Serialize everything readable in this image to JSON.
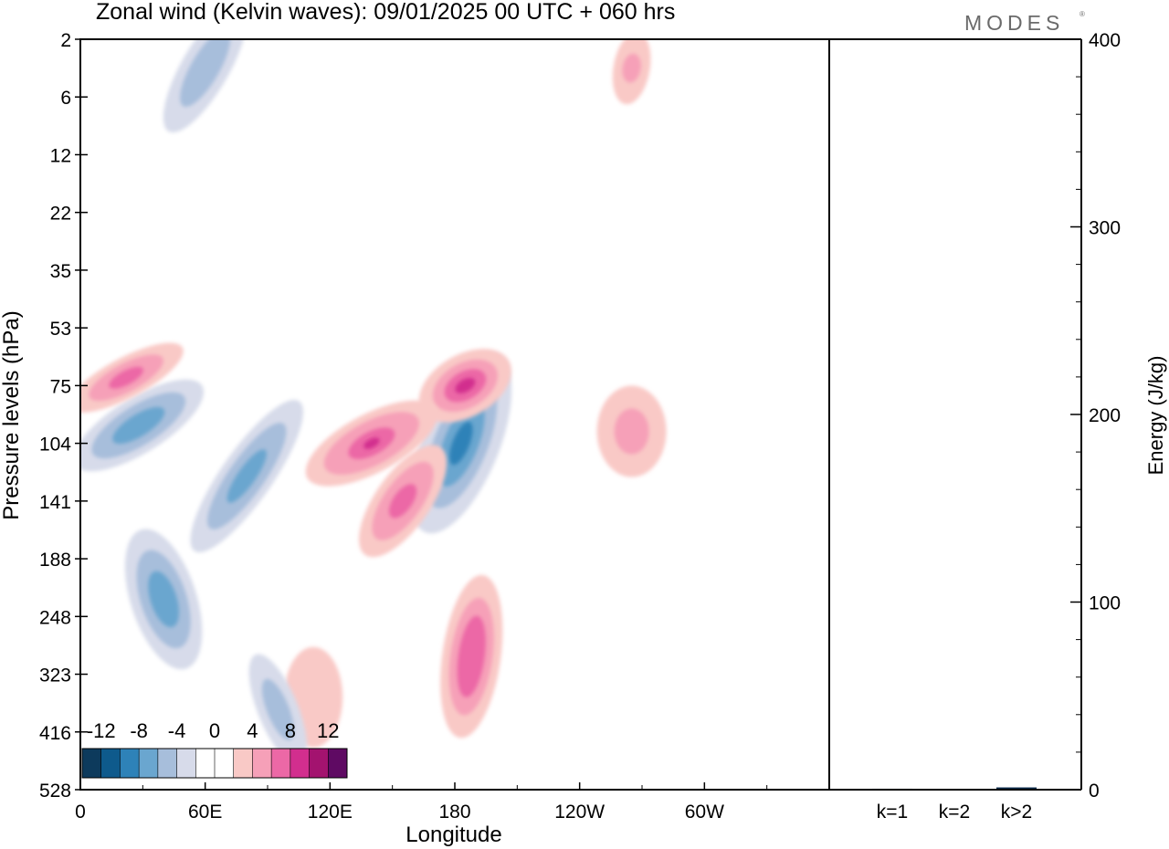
{
  "header": {
    "title": "Zonal wind (Kelvin waves):  09/01/2025  00 UTC  + 060 hrs",
    "brand": "MODES"
  },
  "chart_data": [
    {
      "type": "heatmap",
      "title": "Zonal wind (Kelvin waves):  09/01/2025  00 UTC  + 060 hrs",
      "xlabel": "Longitude",
      "ylabel": "Pressure levels (hPa)",
      "x_ticks": [
        "0",
        "60E",
        "120E",
        "180",
        "120W",
        "60W"
      ],
      "x_tick_values": [
        0,
        60,
        120,
        180,
        240,
        300
      ],
      "xlim": [
        0,
        360
      ],
      "y_ticks": [
        "2",
        "6",
        "12",
        "22",
        "35",
        "53",
        "75",
        "104",
        "141",
        "188",
        "248",
        "323",
        "416",
        "528"
      ],
      "y_scale": "log-pressure",
      "colorbar": {
        "labels": [
          "-12",
          "-8",
          "-4",
          "0",
          "4",
          "8",
          "12"
        ],
        "colors": [
          "#0d3a5c",
          "#0e5a8c",
          "#2e82b8",
          "#6aa6cf",
          "#a7bedb",
          "#d7dbea",
          "#ffffff",
          "#ffffff",
          "#f9c9c6",
          "#f6a0b8",
          "#ec68a6",
          "#d22e8e",
          "#a3136f",
          "#5f0a63"
        ],
        "placement": "bottom-left"
      },
      "features": [
        {
          "sign": "negative",
          "peak": -11,
          "lon": 183,
          "level_hPa": 104
        },
        {
          "sign": "positive",
          "peak": 10,
          "lon": 185,
          "level_hPa": 75
        },
        {
          "sign": "positive",
          "peak": 8,
          "lon": 140,
          "level_hPa": 104
        },
        {
          "sign": "positive",
          "peak": 6,
          "lon": 155,
          "level_hPa": 141
        },
        {
          "sign": "negative",
          "peak": -7,
          "lon": 28,
          "level_hPa": 95
        },
        {
          "sign": "positive",
          "peak": 6,
          "lon": 22,
          "level_hPa": 72
        },
        {
          "sign": "negative",
          "peak": -6,
          "lon": 80,
          "level_hPa": 125
        },
        {
          "sign": "negative",
          "peak": -6,
          "lon": 40,
          "level_hPa": 230
        },
        {
          "sign": "positive",
          "peak": 7,
          "lon": 188,
          "level_hPa": 300
        },
        {
          "sign": "positive",
          "peak": 3,
          "lon": 112,
          "level_hPa": 360
        },
        {
          "sign": "negative",
          "peak": -5,
          "lon": 95,
          "level_hPa": 380
        },
        {
          "sign": "positive",
          "peak": 4,
          "lon": 265,
          "level_hPa": 98
        },
        {
          "sign": "negative",
          "peak": -5,
          "lon": 60,
          "level_hPa": 4
        },
        {
          "sign": "positive",
          "peak": 5,
          "lon": 265,
          "level_hPa": 4
        }
      ]
    },
    {
      "type": "bar",
      "categories": [
        "k=1",
        "k=2",
        "k>2"
      ],
      "values": [
        0.5,
        0.4,
        1.2
      ],
      "ylabel": "Energy (J/kg)",
      "y_ticks": [
        "0",
        "100",
        "200",
        "300",
        "400"
      ],
      "ylim": [
        0,
        400
      ],
      "bar_color": "#0b2a4a"
    }
  ]
}
